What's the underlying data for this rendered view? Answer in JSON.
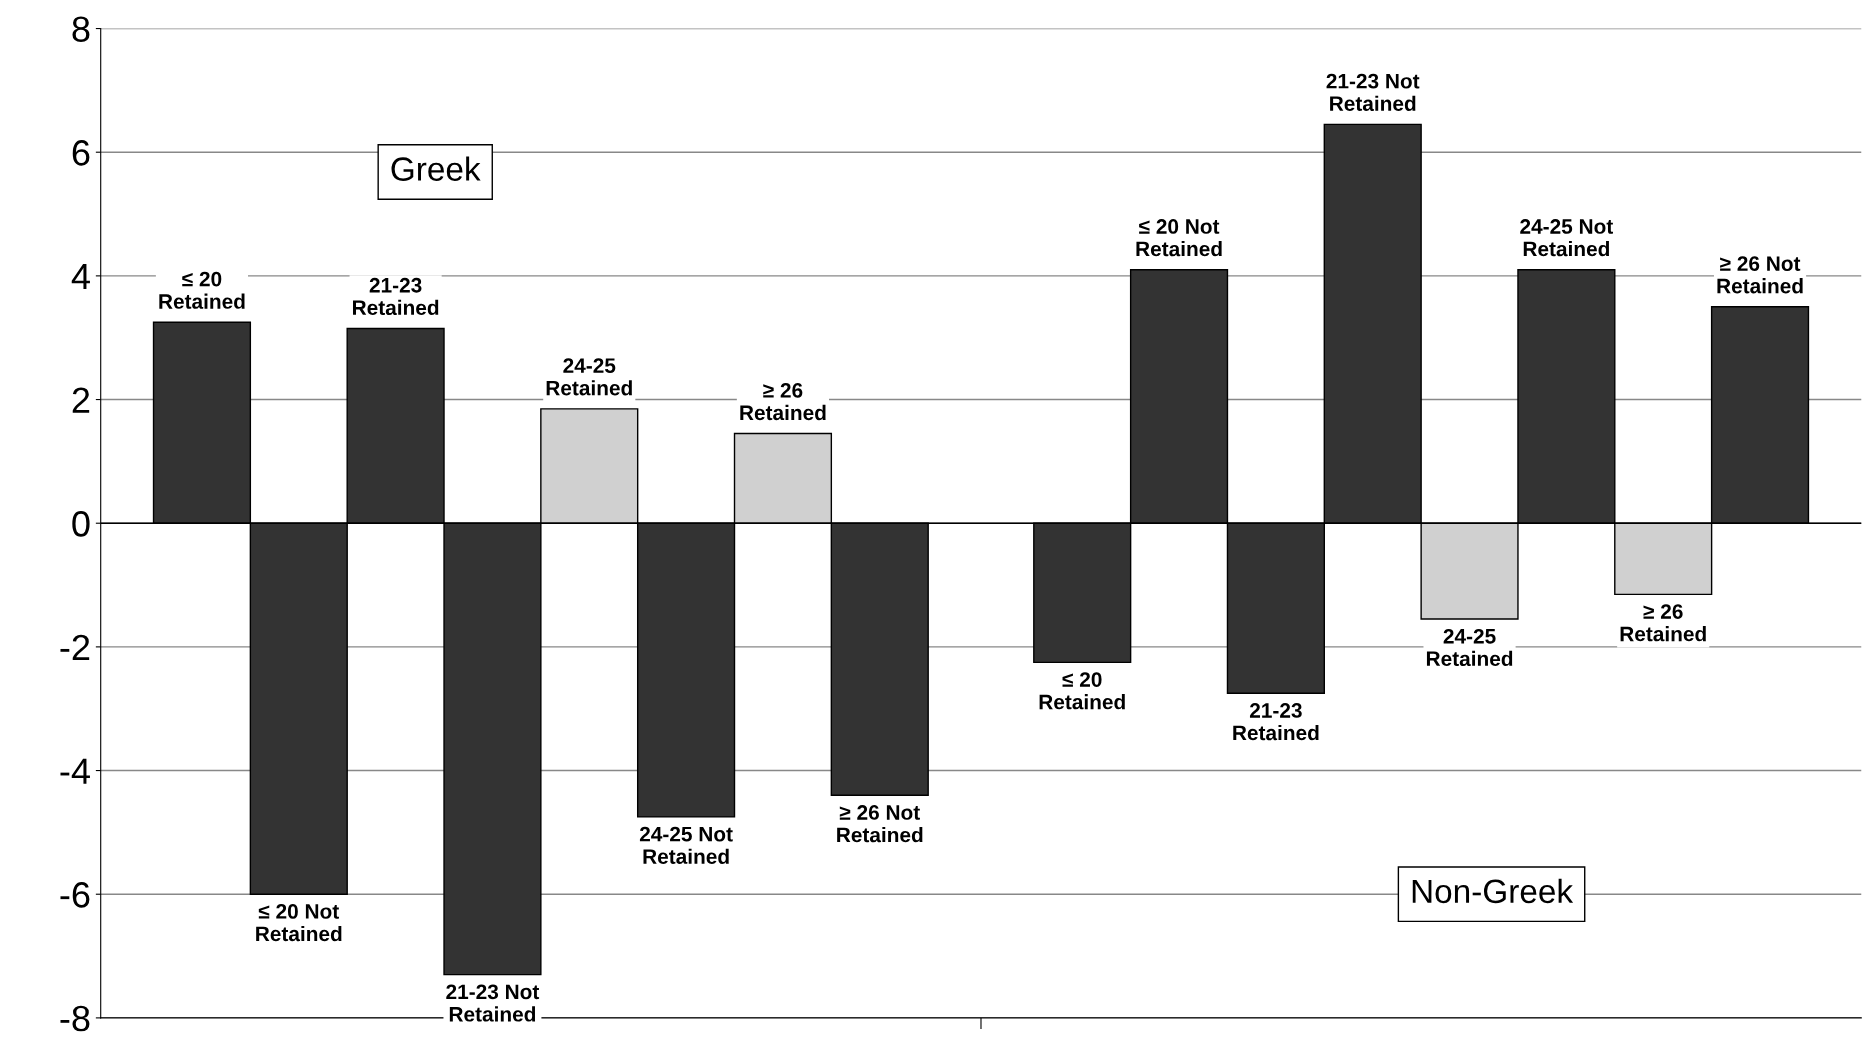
{
  "chart_data": {
    "type": "bar",
    "categories": [
      null,
      null
    ],
    "series": [
      {
        "name": "≤ 20\nRetained",
        "color": "#333333",
        "values": [
          3.25,
          -2.25
        ]
      },
      {
        "name": "≤ 20 Not\nRetained",
        "color": "#333333",
        "values": [
          -6.0,
          4.1
        ]
      },
      {
        "name": "21-23\nRetained",
        "color": "#333333",
        "values": [
          3.15,
          -2.75
        ]
      },
      {
        "name": "21-23 Not\nRetained",
        "color": "#333333",
        "values": [
          -7.3,
          6.45
        ]
      },
      {
        "name": "24-25\nRetained",
        "color": "#d0d0d0",
        "values": [
          1.85,
          -1.55
        ]
      },
      {
        "name": "24-25 Not\nRetained",
        "color": "#333333",
        "values": [
          -4.75,
          4.1
        ]
      },
      {
        "name": "≥ 26\nRetained",
        "color": "#d0d0d0",
        "values": [
          1.45,
          -1.15
        ]
      },
      {
        "name": "≥ 26 Not\nRetained",
        "color": "#333333",
        "values": [
          -4.4,
          3.5
        ]
      }
    ],
    "annotations": [
      "Greek",
      "Non-Greek"
    ],
    "ylim": [
      -8,
      8
    ],
    "yticks": [
      -8,
      -6,
      -4,
      -2,
      0,
      2,
      4,
      6,
      8
    ],
    "grid": "y",
    "tick_labels": "y"
  }
}
